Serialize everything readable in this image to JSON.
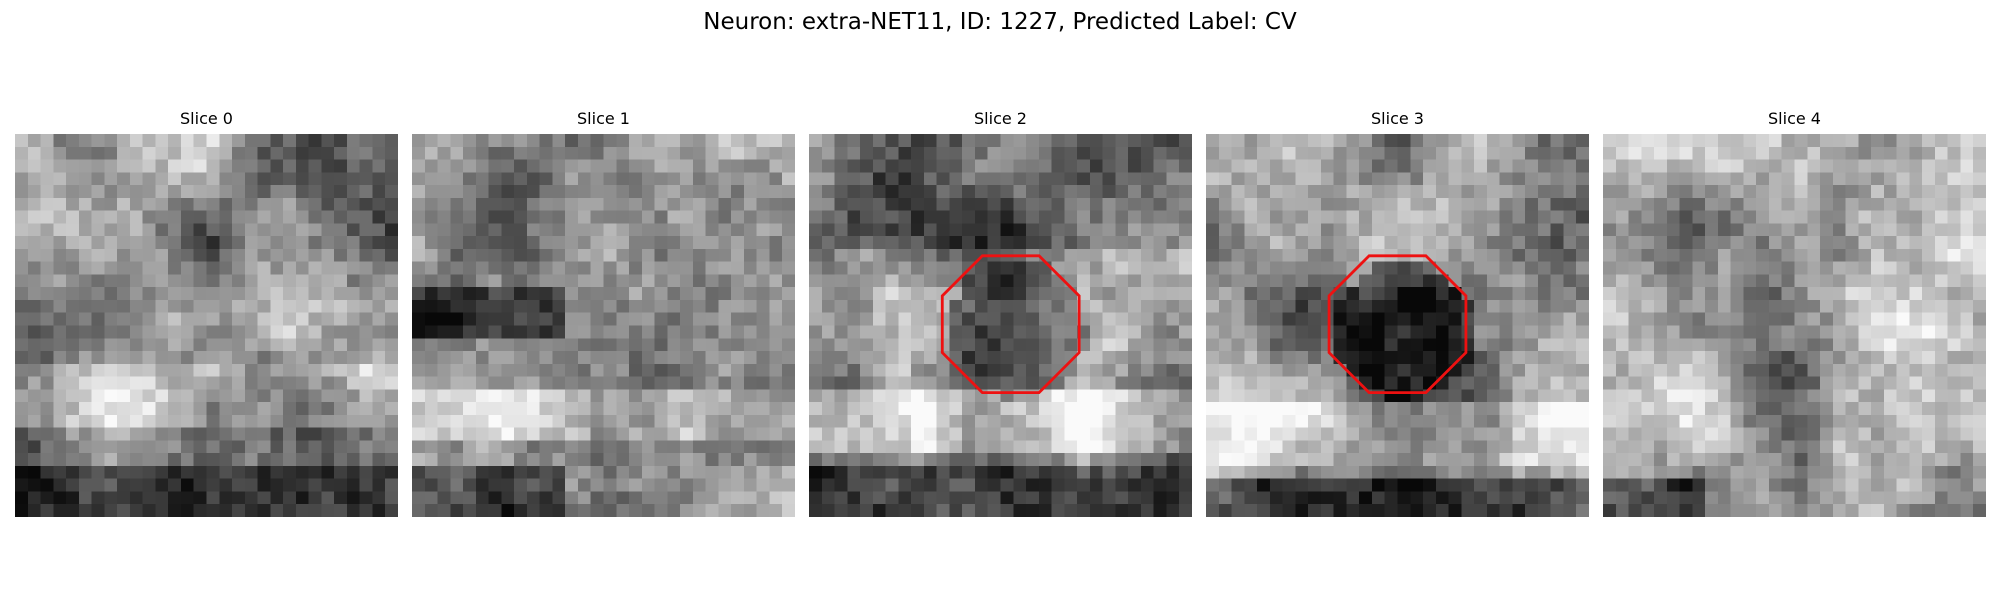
{
  "figure": {
    "suptitle": "Neuron: extra-NET11, ID: 1227, Predicted Label: CV"
  },
  "slices": [
    {
      "title": "Slice 0",
      "marker": false,
      "tone": "mixed"
    },
    {
      "title": "Slice 1",
      "marker": false,
      "tone": "mixed-dark-band"
    },
    {
      "title": "Slice 2",
      "marker": true,
      "tone": "dark-center"
    },
    {
      "title": "Slice 3",
      "marker": true,
      "tone": "dark-center-grainy"
    },
    {
      "title": "Slice 4",
      "marker": false,
      "tone": "light"
    }
  ],
  "colors": {
    "marker": "#ee1111",
    "background": "#ffffff",
    "text": "#000000"
  }
}
